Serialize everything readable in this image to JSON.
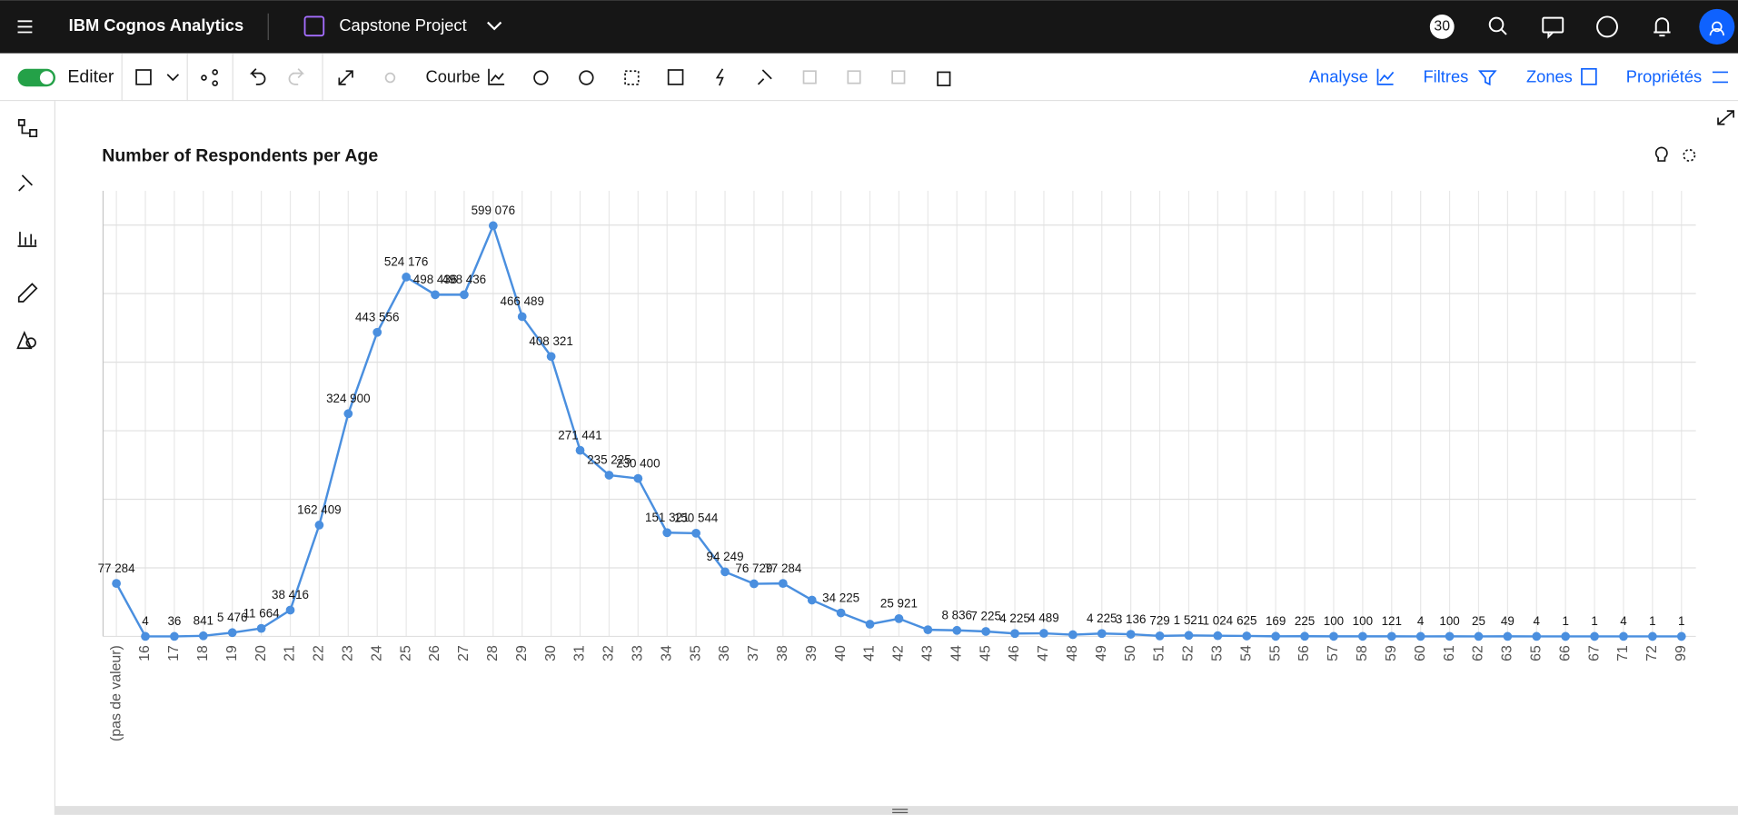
{
  "header": {
    "product": "IBM Cognos Analytics",
    "project": "Capstone Project",
    "notifications": "30"
  },
  "toolbar": {
    "edit": "Editer",
    "chart_type": "Courbe",
    "analyse": "Analyse",
    "filters": "Filtres",
    "zones": "Zones",
    "properties": "Propriétés"
  },
  "chart_data": {
    "type": "line",
    "title": "Number of Respondents per Age",
    "color": "#4a8fdf",
    "grid": true,
    "categories": [
      "(pas de valeur)",
      "16",
      "17",
      "18",
      "19",
      "20",
      "21",
      "22",
      "23",
      "24",
      "25",
      "26",
      "27",
      "28",
      "29",
      "30",
      "31",
      "32",
      "33",
      "34",
      "35",
      "36",
      "37",
      "38",
      "39",
      "40",
      "41",
      "42",
      "43",
      "44",
      "45",
      "46",
      "47",
      "48",
      "49",
      "50",
      "51",
      "52",
      "53",
      "54",
      "55",
      "56",
      "57",
      "58",
      "59",
      "60",
      "61",
      "62",
      "63",
      "65",
      "66",
      "67",
      "71",
      "72",
      "99"
    ],
    "values": [
      77284,
      4,
      36,
      841,
      5476,
      11664,
      38416,
      162409,
      324900,
      443556,
      524176,
      498436,
      498436,
      599076,
      466489,
      408321,
      271441,
      235225,
      230400,
      151321,
      150544,
      94249,
      76729,
      77284,
      53000,
      34225,
      17800,
      25921,
      9700,
      8836,
      7225,
      4225,
      4489,
      2500,
      4225,
      3136,
      729,
      1521,
      1024,
      625,
      169,
      225,
      100,
      100,
      121,
      4,
      100,
      25,
      49,
      4,
      1,
      1,
      4,
      1,
      1
    ],
    "value_labels": [
      "77 284",
      "4",
      "36",
      "841",
      "5 476",
      "11 664",
      "38 416",
      "162 409",
      "324 900",
      "443 556",
      "524 176",
      "498 436",
      "498 436",
      "599 076",
      "466 489",
      "408 321",
      "271 441",
      "235 225",
      "230 400",
      "151 321",
      "150 544",
      "94 249",
      "76 729",
      "77 284",
      null,
      "34 225",
      null,
      "25 921",
      null,
      "8 836",
      "7 225",
      "4 225",
      "4 489",
      null,
      "4 225",
      "3 136",
      "729",
      "1 521",
      "1 024",
      "625",
      "169",
      "225",
      "100",
      "100",
      "121",
      "4",
      "100",
      "25",
      "49",
      "4",
      "1",
      "1",
      "4",
      "1",
      "1"
    ],
    "ylim": [
      0,
      650000
    ],
    "yticks": [
      0,
      100000,
      200000,
      300000,
      400000,
      500000,
      600000
    ]
  }
}
